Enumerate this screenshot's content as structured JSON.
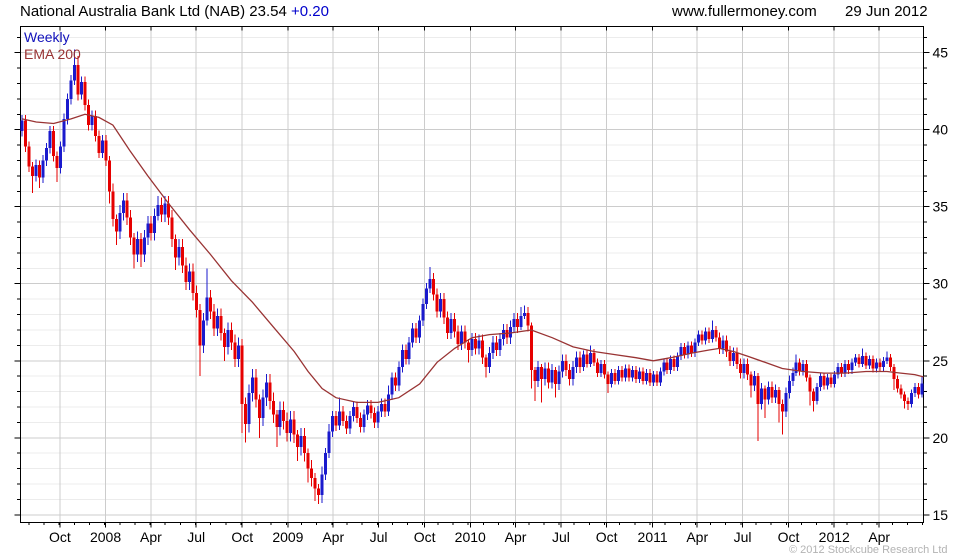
{
  "header": {
    "title": "National Australia Bank Ltd (NAB) 23.54",
    "change": "+0.20",
    "website": "www.fullermoney.com",
    "date": "29 Jun 2012"
  },
  "legend": {
    "timeframe": "Weekly",
    "ema": "EMA 200"
  },
  "footer": {
    "copyright": "© 2012 Stockcube Research Ltd"
  },
  "chart_data": {
    "type": "candlestick",
    "title": "National Australia Bank Ltd (NAB)",
    "timeframe": "Weekly",
    "last_price": 23.54,
    "change": 0.2,
    "overlay": "EMA 200",
    "grid": "on",
    "y_axis": {
      "range": [
        14.5,
        46.7
      ],
      "major_ticks": [
        15,
        20,
        25,
        30,
        35,
        40,
        45
      ],
      "minor_step": 1,
      "side": "right"
    },
    "x_axis": {
      "minor_start": 2.4,
      "minor_step": 4.345,
      "labels": [
        {
          "label": "Oct",
          "week": 11.3
        },
        {
          "label": "2008",
          "week": 24.4
        },
        {
          "label": "Apr",
          "week": 37.4
        },
        {
          "label": "Jul",
          "week": 50.4
        },
        {
          "label": "Oct",
          "week": 63.6
        },
        {
          "label": "2009",
          "week": 76.7
        },
        {
          "label": "Apr",
          "week": 89.7
        },
        {
          "label": "Jul",
          "week": 102.7
        },
        {
          "label": "Oct",
          "week": 115.9
        },
        {
          "label": "2010",
          "week": 129.0
        },
        {
          "label": "Apr",
          "week": 142.0
        },
        {
          "label": "Jul",
          "week": 155.0
        },
        {
          "label": "Oct",
          "week": 168.1
        },
        {
          "label": "2011",
          "week": 181.3
        },
        {
          "label": "Apr",
          "week": 194.1
        },
        {
          "label": "Jul",
          "week": 207.1
        },
        {
          "label": "Oct",
          "week": 220.3
        },
        {
          "label": "2012",
          "week": 233.4
        },
        {
          "label": "Apr",
          "week": 246.3
        }
      ]
    },
    "weeks": 259,
    "first_open": 39.9,
    "closes": [
      40.6,
      38.9,
      37.6,
      37.0,
      37.7,
      36.9,
      38.0,
      38.8,
      39.9,
      38.3,
      37.5,
      38.9,
      40.7,
      42.0,
      43.2,
      44.2,
      42.3,
      43.1,
      41.6,
      40.3,
      40.9,
      39.6,
      38.5,
      39.3,
      38.0,
      36.0,
      34.2,
      33.4,
      34.6,
      35.4,
      34.3,
      33.0,
      31.9,
      32.9,
      31.9,
      33.0,
      33.9,
      33.3,
      34.4,
      35.1,
      34.5,
      35.2,
      34.3,
      32.9,
      31.7,
      32.4,
      31.2,
      30.1,
      30.8,
      29.4,
      28.3,
      26.0,
      27.6,
      29.1,
      28.2,
      27.1,
      27.9,
      26.8,
      25.9,
      27.0,
      26.2,
      25.1,
      26.0,
      22.2,
      20.9,
      22.9,
      23.9,
      22.5,
      21.3,
      22.6,
      23.6,
      22.4,
      21.5,
      20.7,
      21.8,
      21.1,
      20.3,
      21.2,
      20.2,
      19.4,
      20.1,
      19.0,
      18.0,
      17.4,
      16.7,
      16.3,
      17.6,
      19.0,
      20.4,
      21.4,
      20.8,
      21.7,
      21.1,
      20.6,
      21.4,
      22.0,
      21.3,
      20.7,
      21.5,
      22.1,
      21.6,
      21.0,
      21.7,
      22.2,
      21.7,
      22.8,
      23.9,
      23.4,
      24.6,
      25.7,
      25.1,
      26.2,
      27.1,
      26.5,
      27.6,
      28.7,
      29.7,
      30.3,
      29.3,
      28.2,
      29.0,
      27.8,
      26.8,
      27.7,
      26.9,
      26.1,
      26.9,
      26.2,
      25.7,
      26.4,
      25.8,
      26.3,
      25.2,
      24.6,
      25.5,
      26.2,
      25.7,
      26.4,
      27.0,
      26.5,
      27.2,
      27.7,
      27.2,
      27.9,
      28.1,
      27.3,
      24.4,
      23.7,
      24.6,
      23.8,
      24.5,
      23.6,
      24.4,
      23.5,
      24.3,
      25.0,
      24.4,
      23.8,
      24.6,
      25.2,
      24.6,
      25.4,
      24.8,
      25.5,
      24.9,
      24.2,
      24.8,
      24.1,
      23.5,
      24.2,
      23.7,
      24.4,
      23.9,
      24.5,
      23.9,
      24.4,
      23.8,
      24.3,
      23.7,
      24.2,
      23.6,
      24.1,
      23.6,
      24.3,
      24.9,
      24.4,
      25.1,
      24.6,
      25.3,
      25.9,
      25.4,
      26.0,
      25.5,
      26.2,
      26.7,
      26.3,
      26.9,
      26.4,
      27.0,
      26.5,
      25.8,
      26.3,
      25.6,
      25.0,
      25.5,
      24.8,
      24.2,
      24.8,
      24.1,
      23.4,
      24.0,
      22.2,
      23.2,
      22.5,
      23.3,
      22.6,
      23.1,
      22.2,
      21.7,
      22.9,
      23.7,
      24.2,
      24.9,
      24.3,
      24.8,
      23.9,
      23.0,
      22.4,
      23.3,
      24.0,
      23.4,
      23.9,
      23.5,
      24.1,
      24.6,
      24.2,
      24.8,
      24.4,
      24.9,
      25.2,
      24.8,
      25.3,
      24.7,
      25.1,
      24.5,
      24.9,
      24.6,
      25.0,
      25.2,
      24.6,
      23.8,
      23.2,
      22.8,
      22.4,
      22.2,
      22.9,
      23.3,
      22.8,
      23.54
    ],
    "wick_default_eras": [
      [
        0,
        0.35
      ],
      [
        25,
        0.5
      ],
      [
        63,
        0.55
      ],
      [
        87,
        0.35
      ],
      [
        105,
        0.35
      ],
      [
        118,
        0.4
      ],
      [
        146,
        0.4
      ],
      [
        161,
        0.25
      ],
      [
        200,
        0.35
      ],
      [
        222,
        0.25
      ]
    ],
    "wick_overrides": {
      "3": [
        0.3,
        1.1
      ],
      "5": [
        0.3,
        0.7
      ],
      "10": [
        0.3,
        0.9
      ],
      "15": [
        1.0,
        0.3
      ],
      "16": [
        0.6,
        0.4
      ],
      "25": [
        0.3,
        0.8
      ],
      "27": [
        0.3,
        0.9
      ],
      "32": [
        0.3,
        0.9
      ],
      "34": [
        0.4,
        0.8
      ],
      "39": [
        0.6,
        0.3
      ],
      "44": [
        0.3,
        0.8
      ],
      "51": [
        0.4,
        2.0
      ],
      "53": [
        1.9,
        0.3
      ],
      "58": [
        0.3,
        0.9
      ],
      "63": [
        0.4,
        1.9
      ],
      "64": [
        0.4,
        1.2
      ],
      "68": [
        0.3,
        1.3
      ],
      "73": [
        0.3,
        1.3
      ],
      "79": [
        0.3,
        0.9
      ],
      "82": [
        0.3,
        0.9
      ],
      "84": [
        0.3,
        0.8
      ],
      "85": [
        0.3,
        0.6
      ],
      "88": [
        0.5,
        0.3
      ],
      "91": [
        0.9,
        0.3
      ],
      "105": [
        0.6,
        0.3
      ],
      "117": [
        0.8,
        0.3
      ],
      "118": [
        0.4,
        0.4
      ],
      "128": [
        0.2,
        0.8
      ],
      "133": [
        0.2,
        0.7
      ],
      "143": [
        0.6,
        0.2
      ],
      "144": [
        0.5,
        0.2
      ],
      "146": [
        0.2,
        1.2
      ],
      "147": [
        0.2,
        1.3
      ],
      "149": [
        0.2,
        1.5
      ],
      "153": [
        0.2,
        0.9
      ],
      "163": [
        0.5,
        0.2
      ],
      "168": [
        0.2,
        0.6
      ],
      "198": [
        0.6,
        0.2
      ],
      "209": [
        0.2,
        0.8
      ],
      "211": [
        0.2,
        2.4
      ],
      "213": [
        0.2,
        1.2
      ],
      "217": [
        0.2,
        1.2
      ],
      "218": [
        0.3,
        1.5
      ],
      "222": [
        0.5,
        0.2
      ],
      "226": [
        0.2,
        0.9
      ],
      "227": [
        0.2,
        0.7
      ],
      "241": [
        0.5,
        0.2
      ],
      "248": [
        0.4,
        0.2
      ],
      "250": [
        0.2,
        0.7
      ],
      "253": [
        0.2,
        0.5
      ],
      "254": [
        0.2,
        0.4
      ],
      "258": [
        0.4,
        0.2
      ]
    },
    "ema200": [
      [
        0,
        40.7
      ],
      [
        4,
        40.5
      ],
      [
        9,
        40.4
      ],
      [
        14,
        40.7
      ],
      [
        18,
        41.0
      ],
      [
        22,
        40.8
      ],
      [
        26,
        40.3
      ],
      [
        31,
        38.6
      ],
      [
        36,
        37.0
      ],
      [
        42,
        35.2
      ],
      [
        48,
        33.5
      ],
      [
        54,
        31.9
      ],
      [
        60,
        30.2
      ],
      [
        66,
        28.8
      ],
      [
        72,
        27.2
      ],
      [
        78,
        25.6
      ],
      [
        82,
        24.3
      ],
      [
        86,
        23.2
      ],
      [
        90,
        22.6
      ],
      [
        96,
        22.3
      ],
      [
        102,
        22.3
      ],
      [
        108,
        22.6
      ],
      [
        114,
        23.5
      ],
      [
        119,
        24.9
      ],
      [
        124,
        25.8
      ],
      [
        129,
        26.5
      ],
      [
        134,
        26.7
      ],
      [
        140,
        26.8
      ],
      [
        146,
        27.0
      ],
      [
        152,
        26.5
      ],
      [
        158,
        25.9
      ],
      [
        164,
        25.6
      ],
      [
        170,
        25.4
      ],
      [
        176,
        25.2
      ],
      [
        181,
        25.0
      ],
      [
        186,
        25.2
      ],
      [
        192,
        25.5
      ],
      [
        197,
        25.7
      ],
      [
        200,
        25.8
      ],
      [
        204,
        25.6
      ],
      [
        208,
        25.3
      ],
      [
        213,
        24.9
      ],
      [
        218,
        24.5
      ],
      [
        224,
        24.3
      ],
      [
        230,
        24.2
      ],
      [
        236,
        24.2
      ],
      [
        242,
        24.3
      ],
      [
        248,
        24.3
      ],
      [
        252,
        24.2
      ],
      [
        256,
        24.1
      ],
      [
        258.5,
        23.95
      ]
    ],
    "colors": {
      "up": "#1a1acd",
      "down": "#e60000",
      "ema": "#993333",
      "grid_major": "#cccccc",
      "grid_minor": "#ececec",
      "axis": "#000000",
      "label_blue": "#1111bb",
      "copyright_gray": "#b3b3b3"
    }
  }
}
